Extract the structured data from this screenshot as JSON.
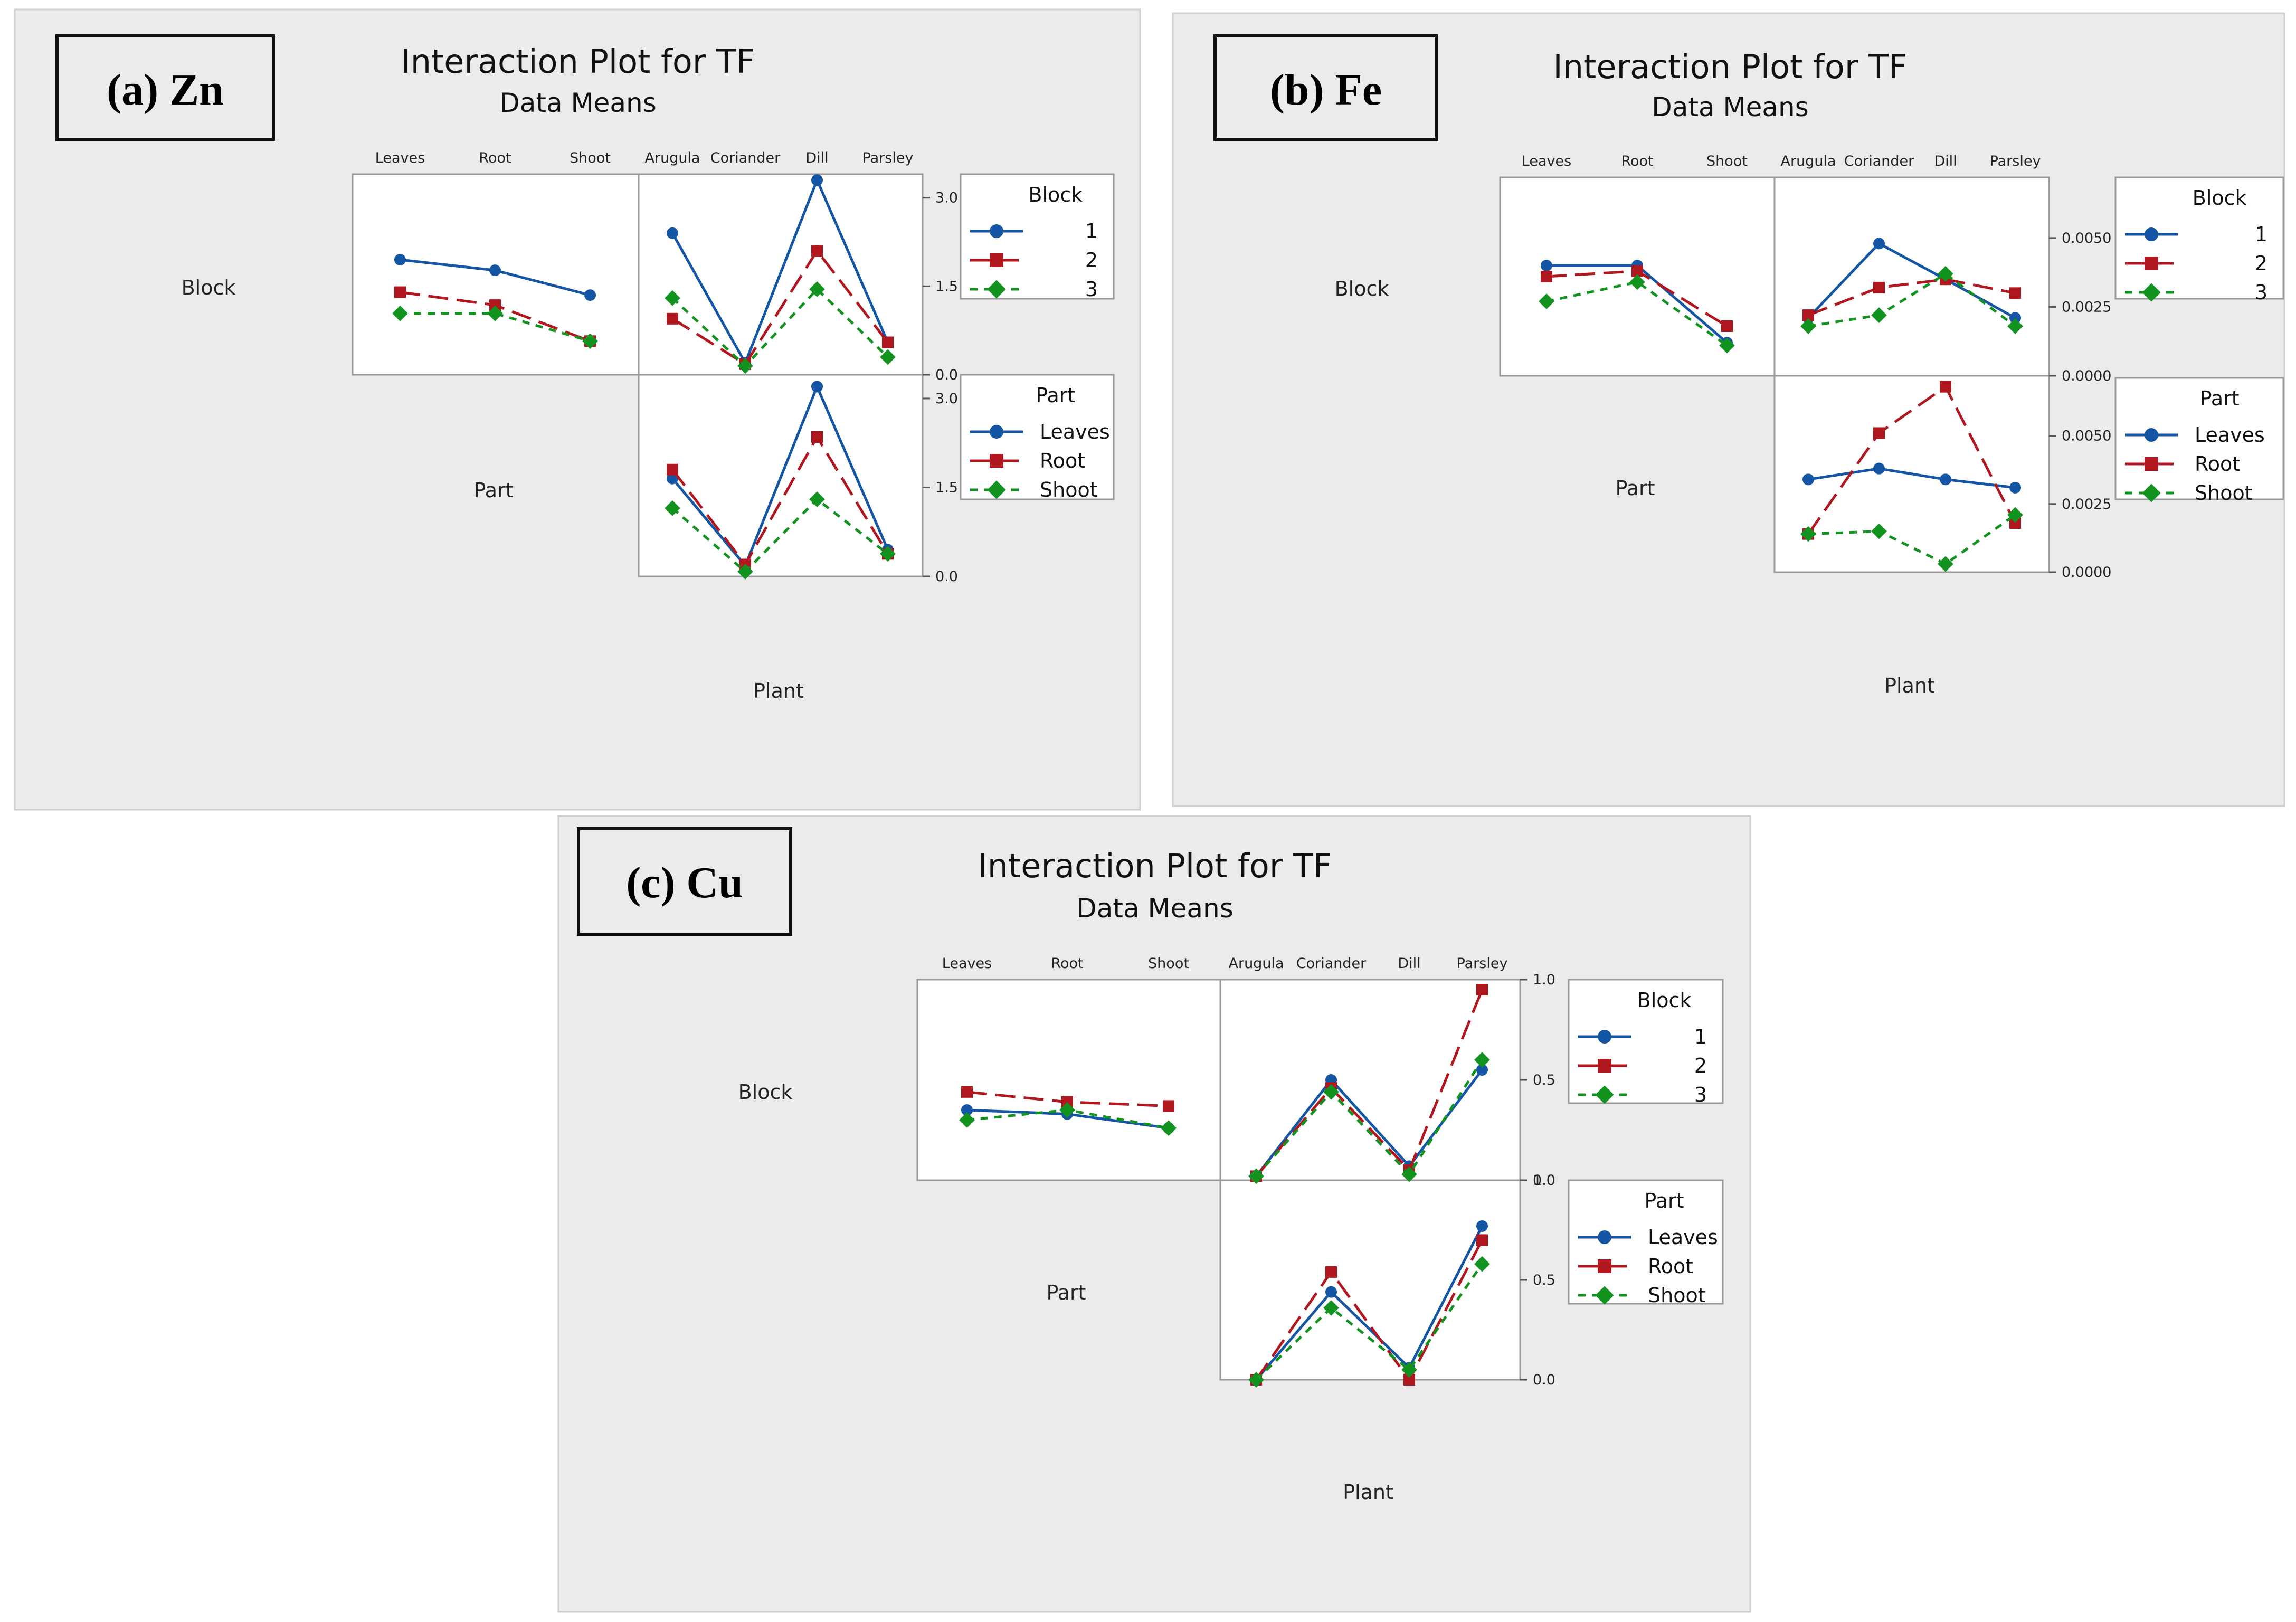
{
  "colors": {
    "panel_bg": "#ebebeb",
    "plot_bg": "#ffffff",
    "series": [
      "#1455a4",
      "#b0171f",
      "#12921f"
    ]
  },
  "chart_data": [
    {
      "type": "line",
      "label": "(a) Zn",
      "title": "Interaction Plot for TF",
      "subtitle": "Data Means",
      "factors": {
        "block": "Block",
        "part": "Part",
        "plant": "Plant"
      },
      "part_levels": [
        "Leaves",
        "Root",
        "Shoot"
      ],
      "plant_levels": [
        "Arugula",
        "Coriander",
        "Dill",
        "Parsley"
      ],
      "ylim": [
        0,
        3.4
      ],
      "yticks": [
        "0.0",
        "1.5",
        "3.0"
      ],
      "block_legend": {
        "title": "Block",
        "entries": [
          "1",
          "2",
          "3"
        ]
      },
      "part_legend": {
        "title": "Part",
        "entries": [
          "Leaves",
          "Root",
          "Shoot"
        ]
      },
      "block_by_part": [
        {
          "name": "1",
          "values": [
            1.95,
            1.77,
            1.35
          ]
        },
        {
          "name": "2",
          "values": [
            1.4,
            1.18,
            0.57
          ]
        },
        {
          "name": "3",
          "values": [
            1.04,
            1.04,
            0.57
          ]
        }
      ],
      "block_by_plant": [
        {
          "name": "1",
          "values": [
            2.4,
            0.2,
            3.3,
            0.55
          ]
        },
        {
          "name": "2",
          "values": [
            0.95,
            0.18,
            2.1,
            0.55
          ]
        },
        {
          "name": "3",
          "values": [
            1.3,
            0.15,
            1.45,
            0.3
          ]
        }
      ],
      "part_by_plant": [
        {
          "name": "Leaves",
          "values": [
            1.65,
            0.18,
            3.2,
            0.45
          ]
        },
        {
          "name": "Root",
          "values": [
            1.8,
            0.2,
            2.35,
            0.38
          ]
        },
        {
          "name": "Shoot",
          "values": [
            1.15,
            0.08,
            1.3,
            0.38
          ]
        }
      ]
    },
    {
      "type": "line",
      "label": "(b) Fe",
      "title": "Interaction Plot for TF",
      "subtitle": "Data Means",
      "factors": {
        "block": "Block",
        "part": "Part",
        "plant": "Plant"
      },
      "part_levels": [
        "Leaves",
        "Root",
        "Shoot"
      ],
      "plant_levels": [
        "Arugula",
        "Coriander",
        "Dill",
        "Parsley"
      ],
      "ylim": [
        0,
        0.0072
      ],
      "yticks": [
        "0.0000",
        "0.0025",
        "0.0050"
      ],
      "block_legend": {
        "title": "Block",
        "entries": [
          "1",
          "2",
          "3"
        ]
      },
      "part_legend": {
        "title": "Part",
        "entries": [
          "Leaves",
          "Root",
          "Shoot"
        ]
      },
      "block_by_part": [
        {
          "name": "1",
          "values": [
            0.004,
            0.004,
            0.0012
          ]
        },
        {
          "name": "2",
          "values": [
            0.0036,
            0.0038,
            0.0018
          ]
        },
        {
          "name": "3",
          "values": [
            0.0027,
            0.0034,
            0.0011
          ]
        }
      ],
      "block_by_plant": [
        {
          "name": "1",
          "values": [
            0.0021,
            0.0048,
            0.0035,
            0.0021
          ]
        },
        {
          "name": "2",
          "values": [
            0.0022,
            0.0032,
            0.0035,
            0.003
          ]
        },
        {
          "name": "3",
          "values": [
            0.0018,
            0.0022,
            0.0037,
            0.0018
          ]
        }
      ],
      "part_by_plant": [
        {
          "name": "Leaves",
          "values": [
            0.0034,
            0.0038,
            0.0034,
            0.0031
          ]
        },
        {
          "name": "Root",
          "values": [
            0.0014,
            0.0051,
            0.0068,
            0.0018
          ]
        },
        {
          "name": "Shoot",
          "values": [
            0.0014,
            0.0015,
            0.0003,
            0.0021
          ]
        }
      ]
    },
    {
      "type": "line",
      "label": "(c) Cu",
      "title": "Interaction Plot for TF",
      "subtitle": "Data Means",
      "factors": {
        "block": "Block",
        "part": "Part",
        "plant": "Plant"
      },
      "part_levels": [
        "Leaves",
        "Root",
        "Shoot"
      ],
      "plant_levels": [
        "Arugula",
        "Coriander",
        "Dill",
        "Parsley"
      ],
      "ylim": [
        0,
        1.0
      ],
      "yticks": [
        "0.0",
        "0.5",
        "1.0"
      ],
      "block_legend": {
        "title": "Block",
        "entries": [
          "1",
          "2",
          "3"
        ]
      },
      "part_legend": {
        "title": "Part",
        "entries": [
          "Leaves",
          "Root",
          "Shoot"
        ]
      },
      "block_by_part": [
        {
          "name": "1",
          "values": [
            0.35,
            0.33,
            0.26
          ]
        },
        {
          "name": "2",
          "values": [
            0.44,
            0.39,
            0.37
          ]
        },
        {
          "name": "3",
          "values": [
            0.3,
            0.35,
            0.26
          ]
        }
      ],
      "block_by_plant": [
        {
          "name": "1",
          "values": [
            0.02,
            0.5,
            0.07,
            0.55
          ]
        },
        {
          "name": "2",
          "values": [
            0.02,
            0.46,
            0.05,
            0.95
          ]
        },
        {
          "name": "3",
          "values": [
            0.02,
            0.44,
            0.03,
            0.6
          ]
        }
      ],
      "part_by_plant": [
        {
          "name": "Leaves",
          "values": [
            0.0,
            0.44,
            0.06,
            0.77
          ]
        },
        {
          "name": "Root",
          "values": [
            0.0,
            0.54,
            0.0,
            0.7
          ]
        },
        {
          "name": "Shoot",
          "values": [
            0.0,
            0.36,
            0.05,
            0.58
          ]
        }
      ]
    }
  ]
}
